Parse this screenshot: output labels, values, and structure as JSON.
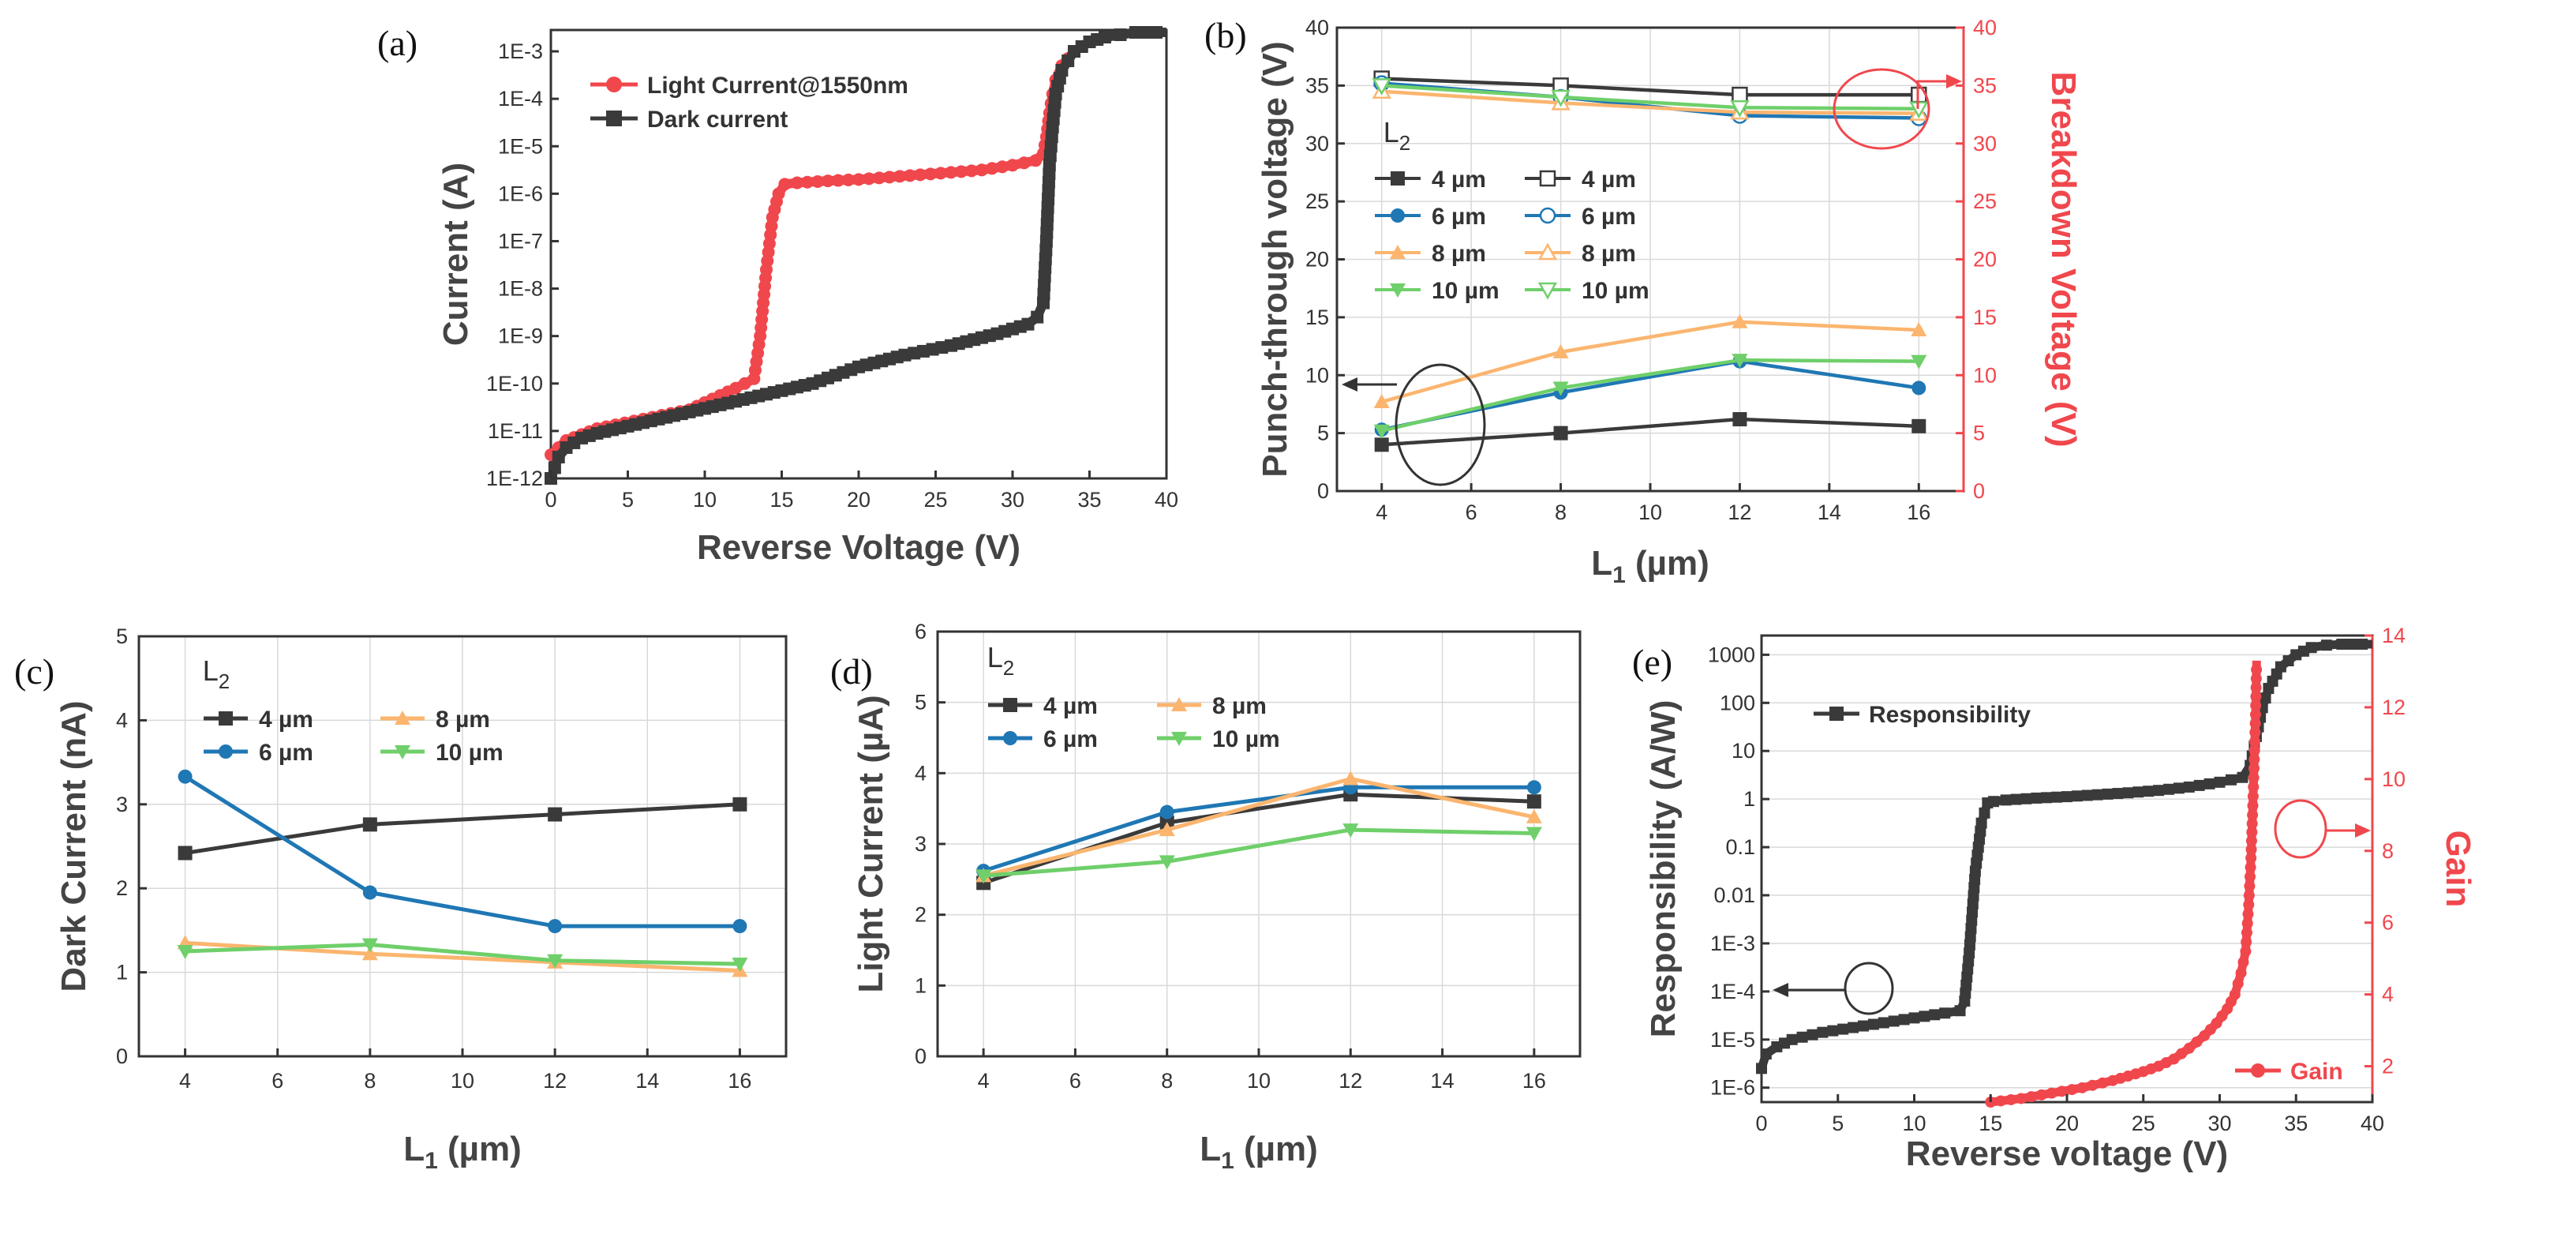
{
  "colors": {
    "black": "#3a3a3a",
    "blue": "#1f77b4",
    "orange": "#fbb56f",
    "green": "#6fcf6a",
    "red": "#f0474d"
  },
  "chart_data": [
    {
      "panel": "(a)",
      "type": "line",
      "xlabel": "Reverse Voltage (V)",
      "ylabel": "Current (A)",
      "yscale": "log",
      "xlim": [
        0,
        40
      ],
      "ylim_exp": [
        -12,
        -2.55
      ],
      "xticks": [
        "0",
        "5",
        "10",
        "15",
        "20",
        "25",
        "30",
        "35",
        "40"
      ],
      "yticks": [
        "1E-12",
        "1E-11",
        "1E-10",
        "1E-9",
        "1E-8",
        "1E-7",
        "1E-6",
        "1E-5",
        "1E-4",
        "1E-3"
      ],
      "series": [
        {
          "name": "Light Current@1550nm",
          "color": "red",
          "x": [
            0,
            1,
            3,
            6,
            9,
            12,
            13.2,
            13.6,
            14.0,
            14.4,
            14.8,
            15.2,
            16,
            18,
            20,
            22,
            24,
            26,
            28,
            30,
            31.5,
            32.0,
            32.2,
            32.4,
            32.6,
            32.8,
            33.2,
            34,
            35,
            36,
            37,
            38,
            40
          ],
          "logy": [
            -11.5,
            -11.2,
            -10.95,
            -10.75,
            -10.55,
            -10.1,
            -9.9,
            -9.0,
            -7.6,
            -6.5,
            -6.0,
            -5.8,
            -5.77,
            -5.73,
            -5.7,
            -5.65,
            -5.6,
            -5.55,
            -5.5,
            -5.4,
            -5.3,
            -5.15,
            -4.8,
            -4.3,
            -3.9,
            -3.6,
            -3.3,
            -3.0,
            -2.8,
            -2.7,
            -2.65,
            -2.6,
            -2.6
          ]
        },
        {
          "name": "Dark current",
          "color": "black",
          "x": [
            0,
            0.5,
            1,
            2,
            3,
            5,
            7,
            9,
            11,
            13,
            15,
            17,
            20,
            23,
            26,
            29,
            31,
            31.6,
            32.0,
            32.2,
            32.4,
            32.6,
            32.8,
            33.2,
            34,
            35,
            36,
            37,
            38,
            40
          ],
          "logy": [
            -12.0,
            -11.55,
            -11.35,
            -11.15,
            -11.05,
            -10.9,
            -10.75,
            -10.6,
            -10.45,
            -10.3,
            -10.15,
            -10.0,
            -9.65,
            -9.4,
            -9.2,
            -8.95,
            -8.75,
            -8.6,
            -8.3,
            -7.0,
            -5.4,
            -4.6,
            -3.9,
            -3.4,
            -3.0,
            -2.8,
            -2.7,
            -2.65,
            -2.6,
            -2.6
          ]
        }
      ]
    },
    {
      "panel": "(b)",
      "type": "line",
      "xlabel_main": "L",
      "xlabel_sub": "1",
      "xlabel_unit": " (µm)",
      "ylabel_left": "Punch-through voltage (V)",
      "ylabel_right": "Breakdown Voltage (V)",
      "xlim": [
        3,
        17
      ],
      "ylim": [
        0,
        40
      ],
      "xticks": [
        "4",
        "6",
        "8",
        "10",
        "12",
        "14",
        "16"
      ],
      "yticks": [
        "0",
        "5",
        "10",
        "15",
        "20",
        "25",
        "30",
        "35",
        "40"
      ],
      "legend_title_main": "L",
      "legend_title_sub": "2",
      "x": [
        4,
        8,
        12,
        16
      ],
      "series": [
        {
          "name": "4 µm",
          "color": "black",
          "axis": "left",
          "values": [
            4,
            5,
            6.2,
            5.6
          ]
        },
        {
          "name": "6 µm",
          "color": "blue",
          "axis": "left",
          "values": [
            5.3,
            8.5,
            11.2,
            8.9
          ]
        },
        {
          "name": "8 µm",
          "color": "orange",
          "axis": "left",
          "values": [
            7.7,
            12,
            14.6,
            13.9
          ]
        },
        {
          "name": "10 µm",
          "color": "green",
          "axis": "left",
          "values": [
            5.2,
            8.9,
            11.3,
            11.2
          ]
        },
        {
          "name": "4 µm",
          "color": "black",
          "axis": "right",
          "values": [
            35.6,
            35,
            34.2,
            34.2
          ]
        },
        {
          "name": "6 µm",
          "color": "blue",
          "axis": "right",
          "values": [
            35.2,
            34,
            32.4,
            32.2
          ]
        },
        {
          "name": "8 µm",
          "color": "orange",
          "axis": "right",
          "values": [
            34.5,
            33.5,
            32.7,
            32.6
          ]
        },
        {
          "name": "10 µm",
          "color": "green",
          "axis": "right",
          "values": [
            35.0,
            34.0,
            33.1,
            33.0
          ]
        }
      ]
    },
    {
      "panel": "(c)",
      "type": "line",
      "xlabel_main": "L",
      "xlabel_sub": "1",
      "xlabel_unit": " (µm)",
      "ylabel": "Dark Current (nA)",
      "xlim": [
        3,
        17
      ],
      "ylim": [
        0,
        5
      ],
      "xticks": [
        "4",
        "6",
        "8",
        "10",
        "12",
        "14",
        "16"
      ],
      "yticks": [
        "0",
        "1",
        "2",
        "3",
        "4",
        "5"
      ],
      "legend_title_main": "L",
      "legend_title_sub": "2",
      "x": [
        4,
        8,
        12,
        16
      ],
      "series": [
        {
          "name": "4 µm",
          "color": "black",
          "values": [
            2.42,
            2.76,
            2.88,
            3.0
          ]
        },
        {
          "name": "6 µm",
          "color": "blue",
          "values": [
            3.33,
            1.95,
            1.55,
            1.55
          ]
        },
        {
          "name": "8 µm",
          "color": "orange",
          "values": [
            1.35,
            1.22,
            1.12,
            1.02
          ]
        },
        {
          "name": "10 µm",
          "color": "green",
          "values": [
            1.25,
            1.33,
            1.14,
            1.1
          ]
        }
      ]
    },
    {
      "panel": "(d)",
      "type": "line",
      "xlabel_main": "L",
      "xlabel_sub": "1",
      "xlabel_unit": " (µm)",
      "ylabel": "Light Current (µA)",
      "xlim": [
        3,
        17
      ],
      "ylim": [
        0,
        6
      ],
      "xticks": [
        "4",
        "6",
        "8",
        "10",
        "12",
        "14",
        "16"
      ],
      "yticks": [
        "0",
        "1",
        "2",
        "3",
        "4",
        "5",
        "6"
      ],
      "legend_title_main": "L",
      "legend_title_sub": "2",
      "x": [
        4,
        8,
        12,
        16
      ],
      "series": [
        {
          "name": "4 µm",
          "color": "black",
          "values": [
            2.45,
            3.3,
            3.7,
            3.6
          ]
        },
        {
          "name": "6 µm",
          "color": "blue",
          "values": [
            2.62,
            3.45,
            3.8,
            3.8
          ]
        },
        {
          "name": "8 µm",
          "color": "orange",
          "values": [
            2.55,
            3.2,
            3.92,
            3.38
          ]
        },
        {
          "name": "10 µm",
          "color": "green",
          "values": [
            2.55,
            2.75,
            3.2,
            3.15
          ]
        }
      ]
    },
    {
      "panel": "(e)",
      "type": "line",
      "xlabel": "Reverse voltage (V)",
      "ylabel_left": "Responsibility (A/W)",
      "ylabel_right": "Gain",
      "xlim": [
        0,
        40
      ],
      "ylim_left_exp": [
        -6.3,
        3.4
      ],
      "ylim_right": [
        1,
        14
      ],
      "xticks": [
        "0",
        "5",
        "10",
        "15",
        "20",
        "25",
        "30",
        "35",
        "40"
      ],
      "yticks_left": [
        "1E-6",
        "1E-5",
        "1E-4",
        "1E-3",
        "0.01",
        "0.1",
        "1",
        "10",
        "100",
        "1000"
      ],
      "yticks_right": [
        "2",
        "4",
        "6",
        "8",
        "10",
        "12",
        "14"
      ],
      "series": [
        {
          "name": "Responsibility",
          "color": "black",
          "axis": "left",
          "x": [
            0,
            0.3,
            1,
            2,
            4,
            6,
            8,
            10,
            12,
            13,
            13.3,
            13.6,
            14.0,
            14.4,
            14.8,
            15.2,
            16,
            18,
            20,
            22,
            24,
            26,
            28,
            30,
            31.5,
            32.0,
            32.4,
            32.8,
            33.2,
            34,
            35,
            36,
            37,
            38,
            40
          ],
          "logy": [
            -5.6,
            -5.3,
            -5.15,
            -5.0,
            -4.85,
            -4.75,
            -4.65,
            -4.55,
            -4.45,
            -4.4,
            -4.2,
            -3.2,
            -1.5,
            -0.5,
            -0.08,
            -0.05,
            -0.02,
            0.02,
            0.05,
            0.09,
            0.13,
            0.18,
            0.25,
            0.35,
            0.45,
            0.7,
            1.3,
            1.9,
            2.3,
            2.75,
            3.0,
            3.15,
            3.2,
            3.22,
            3.22
          ]
        },
        {
          "name": "Gain",
          "color": "red",
          "axis": "right",
          "x": [
            15,
            17,
            19,
            21,
            23,
            25,
            26,
            27,
            28,
            29,
            29.8,
            30.5,
            31.0,
            31.4,
            31.7,
            31.9,
            32.05,
            32.15,
            32.25,
            32.35,
            32.42
          ],
          "values": [
            1.0,
            1.1,
            1.25,
            1.4,
            1.6,
            1.85,
            2.0,
            2.2,
            2.5,
            2.85,
            3.2,
            3.6,
            4.0,
            4.6,
            5.2,
            6.5,
            7.8,
            9.0,
            10.3,
            11.8,
            13.3
          ]
        }
      ]
    }
  ],
  "annot": {
    "arrow_left_label": "",
    "arrow_right_label": ""
  }
}
